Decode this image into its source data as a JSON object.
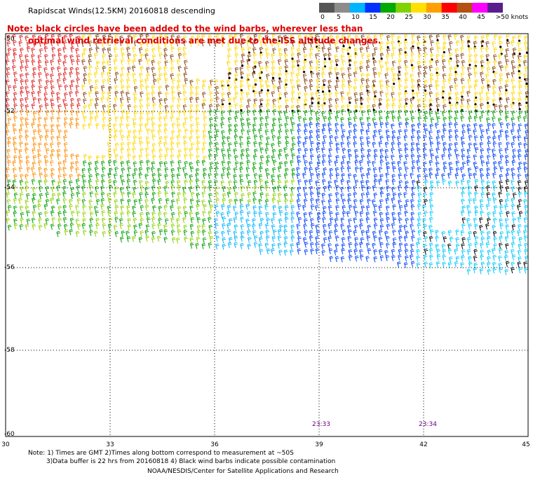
{
  "title": "Rapidscat Winds(12.5KM) 20160818 descending",
  "legend": {
    "labels": [
      "0",
      "5",
      "10",
      "15",
      "20",
      "25",
      "30",
      "35",
      "40",
      "45",
      ">50 knots"
    ],
    "colors": [
      "#555555",
      "#8c8c8c",
      "#00b4ff",
      "#0032ff",
      "#00aa00",
      "#80d200",
      "#ffe000",
      "#ffa000",
      "#ff0000",
      "#b45014",
      "#ff00ff",
      "#5a1e8c"
    ]
  },
  "note": {
    "line1": "Note: black circles have been added to the wind barbs, wherever less than",
    "line2": "optimal wind retrieval conditions are met due to the ISS altitude changes."
  },
  "map": {
    "longitudes": [
      "30",
      "33",
      "36",
      "39",
      "42",
      "45"
    ],
    "latitudes": [
      "-50",
      "-52",
      "-54",
      "-56",
      "-58",
      "-60"
    ],
    "times": [
      {
        "label": "23:33",
        "lon": 39
      },
      {
        "label": "23:34",
        "lon": 42
      }
    ]
  },
  "footer": {
    "line1": "Note: 1) Times are GMT 2)Times along bottom correspond to measurement at ~50S",
    "line2": "3)Data buffer is 22 hrs from 20160818 4) Black wind barbs indicate possible contamination",
    "line3": "NOAA/NESDIS/Center for Satellite Applications and Research"
  }
}
